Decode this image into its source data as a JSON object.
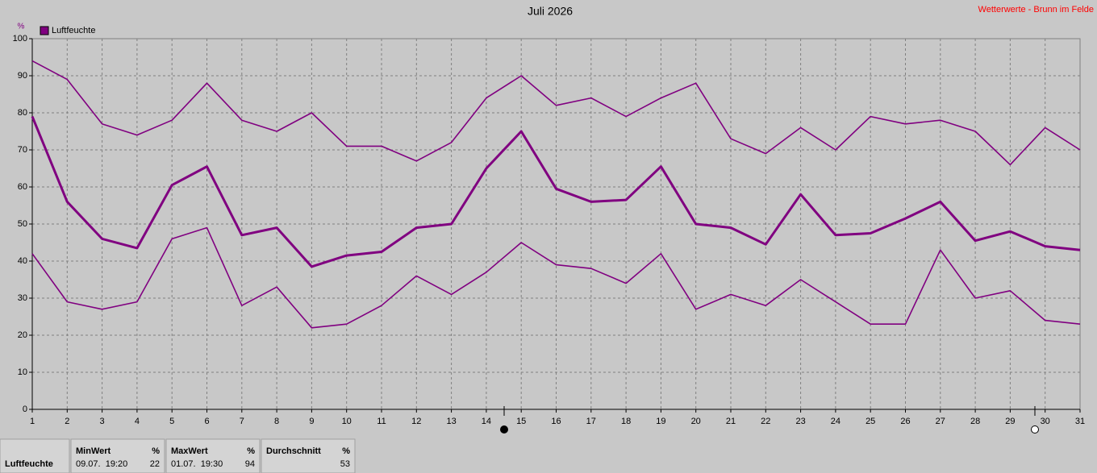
{
  "chart_data": {
    "type": "line",
    "title": "Juli 2026",
    "source": "Wetterwerte - Brunn im Felde",
    "y_label": "%",
    "x": [
      1,
      2,
      3,
      4,
      5,
      6,
      7,
      8,
      9,
      10,
      11,
      12,
      13,
      14,
      15,
      16,
      17,
      18,
      19,
      20,
      21,
      22,
      23,
      24,
      25,
      26,
      27,
      28,
      29,
      30,
      31
    ],
    "series": [
      {
        "name": "Luftfeuchte",
        "color": "#800080",
        "values": [
          79,
          56,
          46,
          43.5,
          60.5,
          65.5,
          47,
          49,
          38.5,
          41.5,
          42.5,
          49,
          50,
          65,
          75,
          59.5,
          56,
          56.5,
          65.5,
          50,
          49,
          44.5,
          58,
          47,
          47.5,
          51.5,
          56,
          45.5,
          48,
          44,
          43
        ]
      },
      {
        "color": "#800080",
        "values": [
          94,
          89,
          77,
          74,
          78,
          88,
          78,
          75,
          80,
          71,
          71,
          67,
          72,
          84,
          90,
          82,
          84,
          79,
          84,
          88,
          73,
          69,
          76,
          70,
          79,
          77,
          78,
          75,
          66,
          76,
          70
        ]
      },
      {
        "color": "#800080",
        "values": [
          42,
          29,
          27,
          29,
          46,
          49,
          28,
          33,
          22,
          23,
          28,
          36,
          31,
          37,
          45,
          39,
          38,
          34,
          42,
          27,
          31,
          28,
          35,
          29,
          23,
          23,
          43,
          30,
          32,
          24,
          23
        ]
      }
    ],
    "xlim": [
      1,
      31
    ],
    "xticks": [
      1,
      2,
      3,
      4,
      5,
      6,
      7,
      8,
      9,
      10,
      11,
      12,
      13,
      14,
      15,
      16,
      17,
      18,
      19,
      20,
      21,
      22,
      23,
      24,
      25,
      26,
      27,
      28,
      29,
      30,
      31
    ],
    "ylim": [
      0,
      100
    ],
    "yticks": [
      0,
      10,
      20,
      30,
      40,
      50,
      60,
      70,
      80,
      90,
      100
    ],
    "grid": true
  },
  "stats": {
    "label": "Luftfeuchte",
    "columns": [
      {
        "header": "MinWert",
        "unit": "%",
        "time": "09.07.  19:20",
        "value": 22
      },
      {
        "header": "MaxWert",
        "unit": "%",
        "time": "01.07.  19:30",
        "value": 94
      },
      {
        "header": "Durchschnitt",
        "unit": "%",
        "value": 53
      }
    ]
  }
}
